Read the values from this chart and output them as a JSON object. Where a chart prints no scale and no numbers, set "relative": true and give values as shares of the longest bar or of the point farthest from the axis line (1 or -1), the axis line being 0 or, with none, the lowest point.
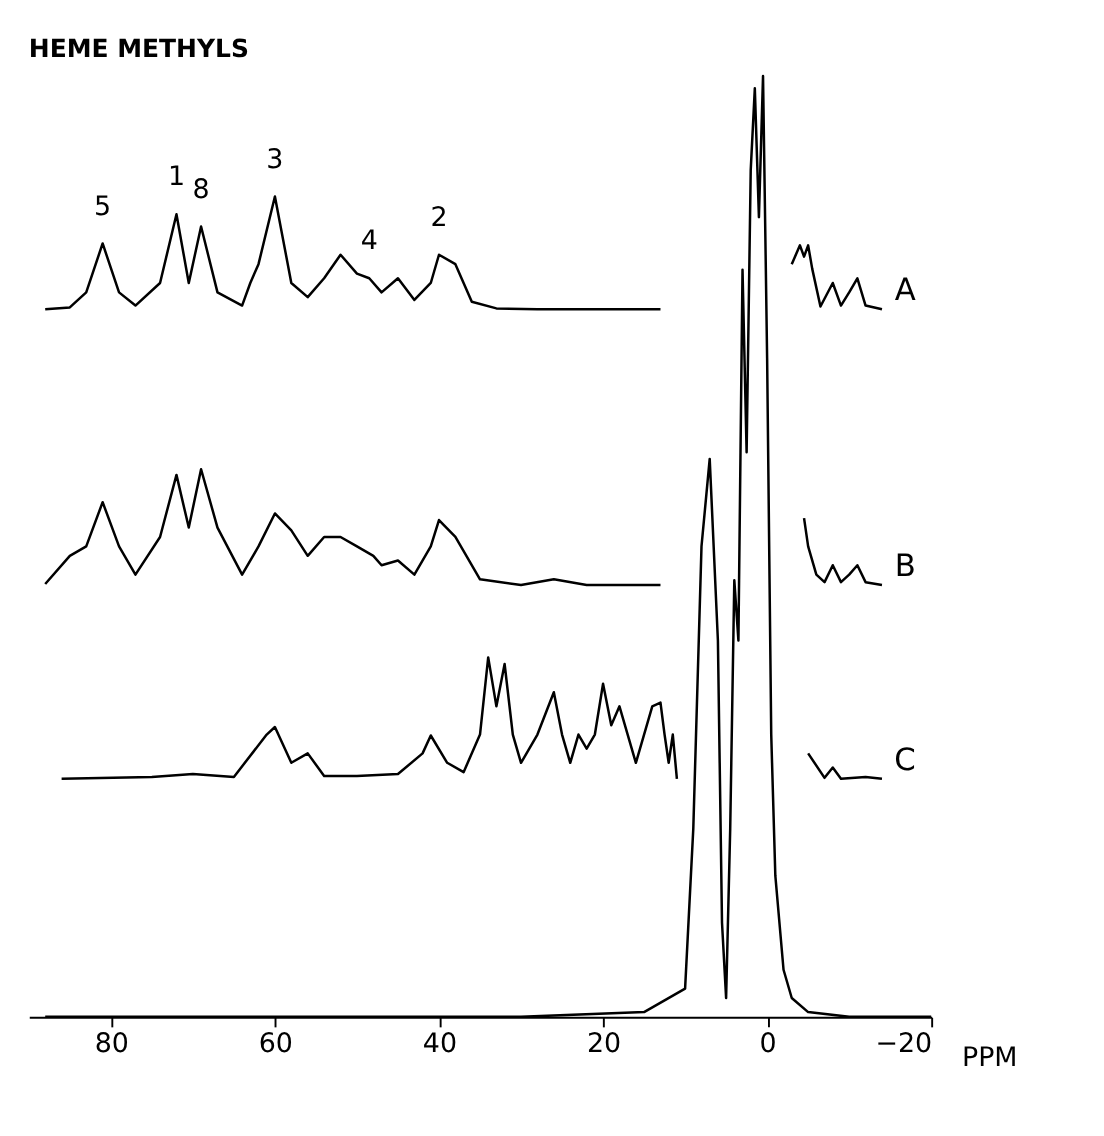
{
  "chart_data": {
    "type": "line",
    "title": "HEME METHYLS",
    "xlabel": "PPM",
    "relative": true,
    "xlim": [
      90,
      -20
    ],
    "xticks": [
      80,
      60,
      40,
      20,
      0,
      -20
    ],
    "grid": false,
    "tick_labels": "x",
    "line_style": "solid",
    "marker": "none",
    "series": [
      {
        "name": "A",
        "color": "#000000",
        "x": [
          88,
          85,
          83,
          81,
          79,
          77,
          74,
          72,
          70.5,
          69,
          67,
          64,
          63,
          62,
          60,
          58,
          56,
          54,
          52,
          50,
          48.5,
          47,
          45,
          43,
          41,
          40,
          38,
          36,
          33,
          28,
          20,
          13,
          12,
          -3,
          -4,
          -4.5,
          -5,
          -5.5,
          -6.5,
          -8,
          -9,
          -10,
          -11,
          -12,
          -14
        ],
        "values": [
          0.752,
          0.754,
          0.77,
          0.822,
          0.77,
          0.756,
          0.78,
          0.853,
          0.78,
          0.84,
          0.77,
          0.756,
          0.78,
          0.8,
          0.872,
          0.78,
          0.765,
          0.785,
          0.81,
          0.79,
          0.785,
          0.77,
          0.785,
          0.762,
          0.78,
          0.81,
          0.8,
          0.76,
          0.753,
          0.752,
          0.752,
          0.752,
          null,
          0.8,
          0.82,
          0.808,
          0.82,
          0.795,
          0.755,
          0.78,
          0.756,
          0.77,
          0.785,
          0.756,
          0.752
        ]
      },
      {
        "name": "B",
        "color": "#000000",
        "x": [
          88,
          85,
          83,
          81,
          79,
          77,
          74,
          72,
          70.5,
          69,
          67,
          64,
          62,
          60,
          58,
          56,
          54,
          52,
          50,
          48,
          47,
          45,
          43,
          41,
          40,
          38,
          35,
          30,
          26,
          22,
          13,
          12,
          -4.5,
          -5,
          -6,
          -7,
          -8,
          -9,
          -10,
          -11,
          -12,
          -14
        ],
        "values": [
          0.46,
          0.49,
          0.5,
          0.547,
          0.5,
          0.47,
          0.51,
          0.576,
          0.52,
          0.582,
          0.52,
          0.47,
          0.5,
          0.535,
          0.517,
          0.49,
          0.51,
          0.51,
          0.5,
          0.49,
          0.48,
          0.485,
          0.47,
          0.5,
          0.528,
          0.51,
          0.465,
          0.459,
          0.465,
          0.459,
          0.459,
          null,
          0.53,
          0.5,
          0.47,
          0.462,
          0.48,
          0.462,
          0.47,
          0.48,
          0.462,
          0.459
        ]
      },
      {
        "name": "C",
        "color": "#000000",
        "x": [
          86,
          75,
          70,
          65,
          61,
          60,
          58,
          56,
          54,
          50,
          45,
          42,
          41,
          39,
          37,
          35,
          34,
          33,
          32,
          31,
          30,
          28,
          26,
          25,
          24,
          23,
          22,
          21,
          20,
          19,
          18,
          17,
          16,
          14,
          13,
          12.5,
          12,
          11.5,
          11,
          -4.5,
          -5,
          -7,
          -8,
          -9,
          -12,
          -14
        ],
        "values": [
          0.253,
          0.255,
          0.258,
          0.255,
          0.3,
          0.308,
          0.27,
          0.28,
          0.256,
          0.256,
          0.258,
          0.28,
          0.299,
          0.27,
          0.26,
          0.3,
          0.382,
          0.33,
          0.375,
          0.3,
          0.27,
          0.3,
          0.345,
          0.3,
          0.27,
          0.3,
          0.285,
          0.3,
          0.354,
          0.31,
          0.33,
          0.3,
          0.27,
          0.33,
          0.334,
          0.3,
          0.27,
          0.3,
          0.253,
          null,
          0.28,
          0.254,
          0.265,
          0.253,
          0.255,
          0.253
        ]
      },
      {
        "color": "#000000",
        "x": [
          88,
          60,
          30,
          15,
          10,
          9,
          8,
          7,
          6,
          5.5,
          5,
          4.5,
          4,
          3.5,
          3,
          2.5,
          2,
          1.5,
          1,
          0.5,
          0,
          -0.5,
          -1,
          -2,
          -3,
          -5,
          -10,
          -20
        ],
        "values": [
          0,
          0,
          0,
          0.005,
          0.03,
          0.2,
          0.5,
          0.593,
          0.4,
          0.1,
          0.02,
          0.2,
          0.464,
          0.4,
          0.794,
          0.6,
          0.9,
          0.987,
          0.85,
          1.0,
          0.7,
          0.3,
          0.15,
          0.05,
          0.02,
          0.005,
          0,
          0
        ]
      }
    ],
    "annotations": [
      {
        "text": "5",
        "x": 81,
        "y": 0.822
      },
      {
        "text": "1",
        "x": 72,
        "y": 0.853
      },
      {
        "text": "8",
        "x": 69,
        "y": 0.84
      },
      {
        "text": "3",
        "x": 60,
        "y": 0.872
      },
      {
        "text": "4",
        "x": 48.5,
        "y": 0.785
      },
      {
        "text": "2",
        "x": 40,
        "y": 0.81
      }
    ]
  }
}
